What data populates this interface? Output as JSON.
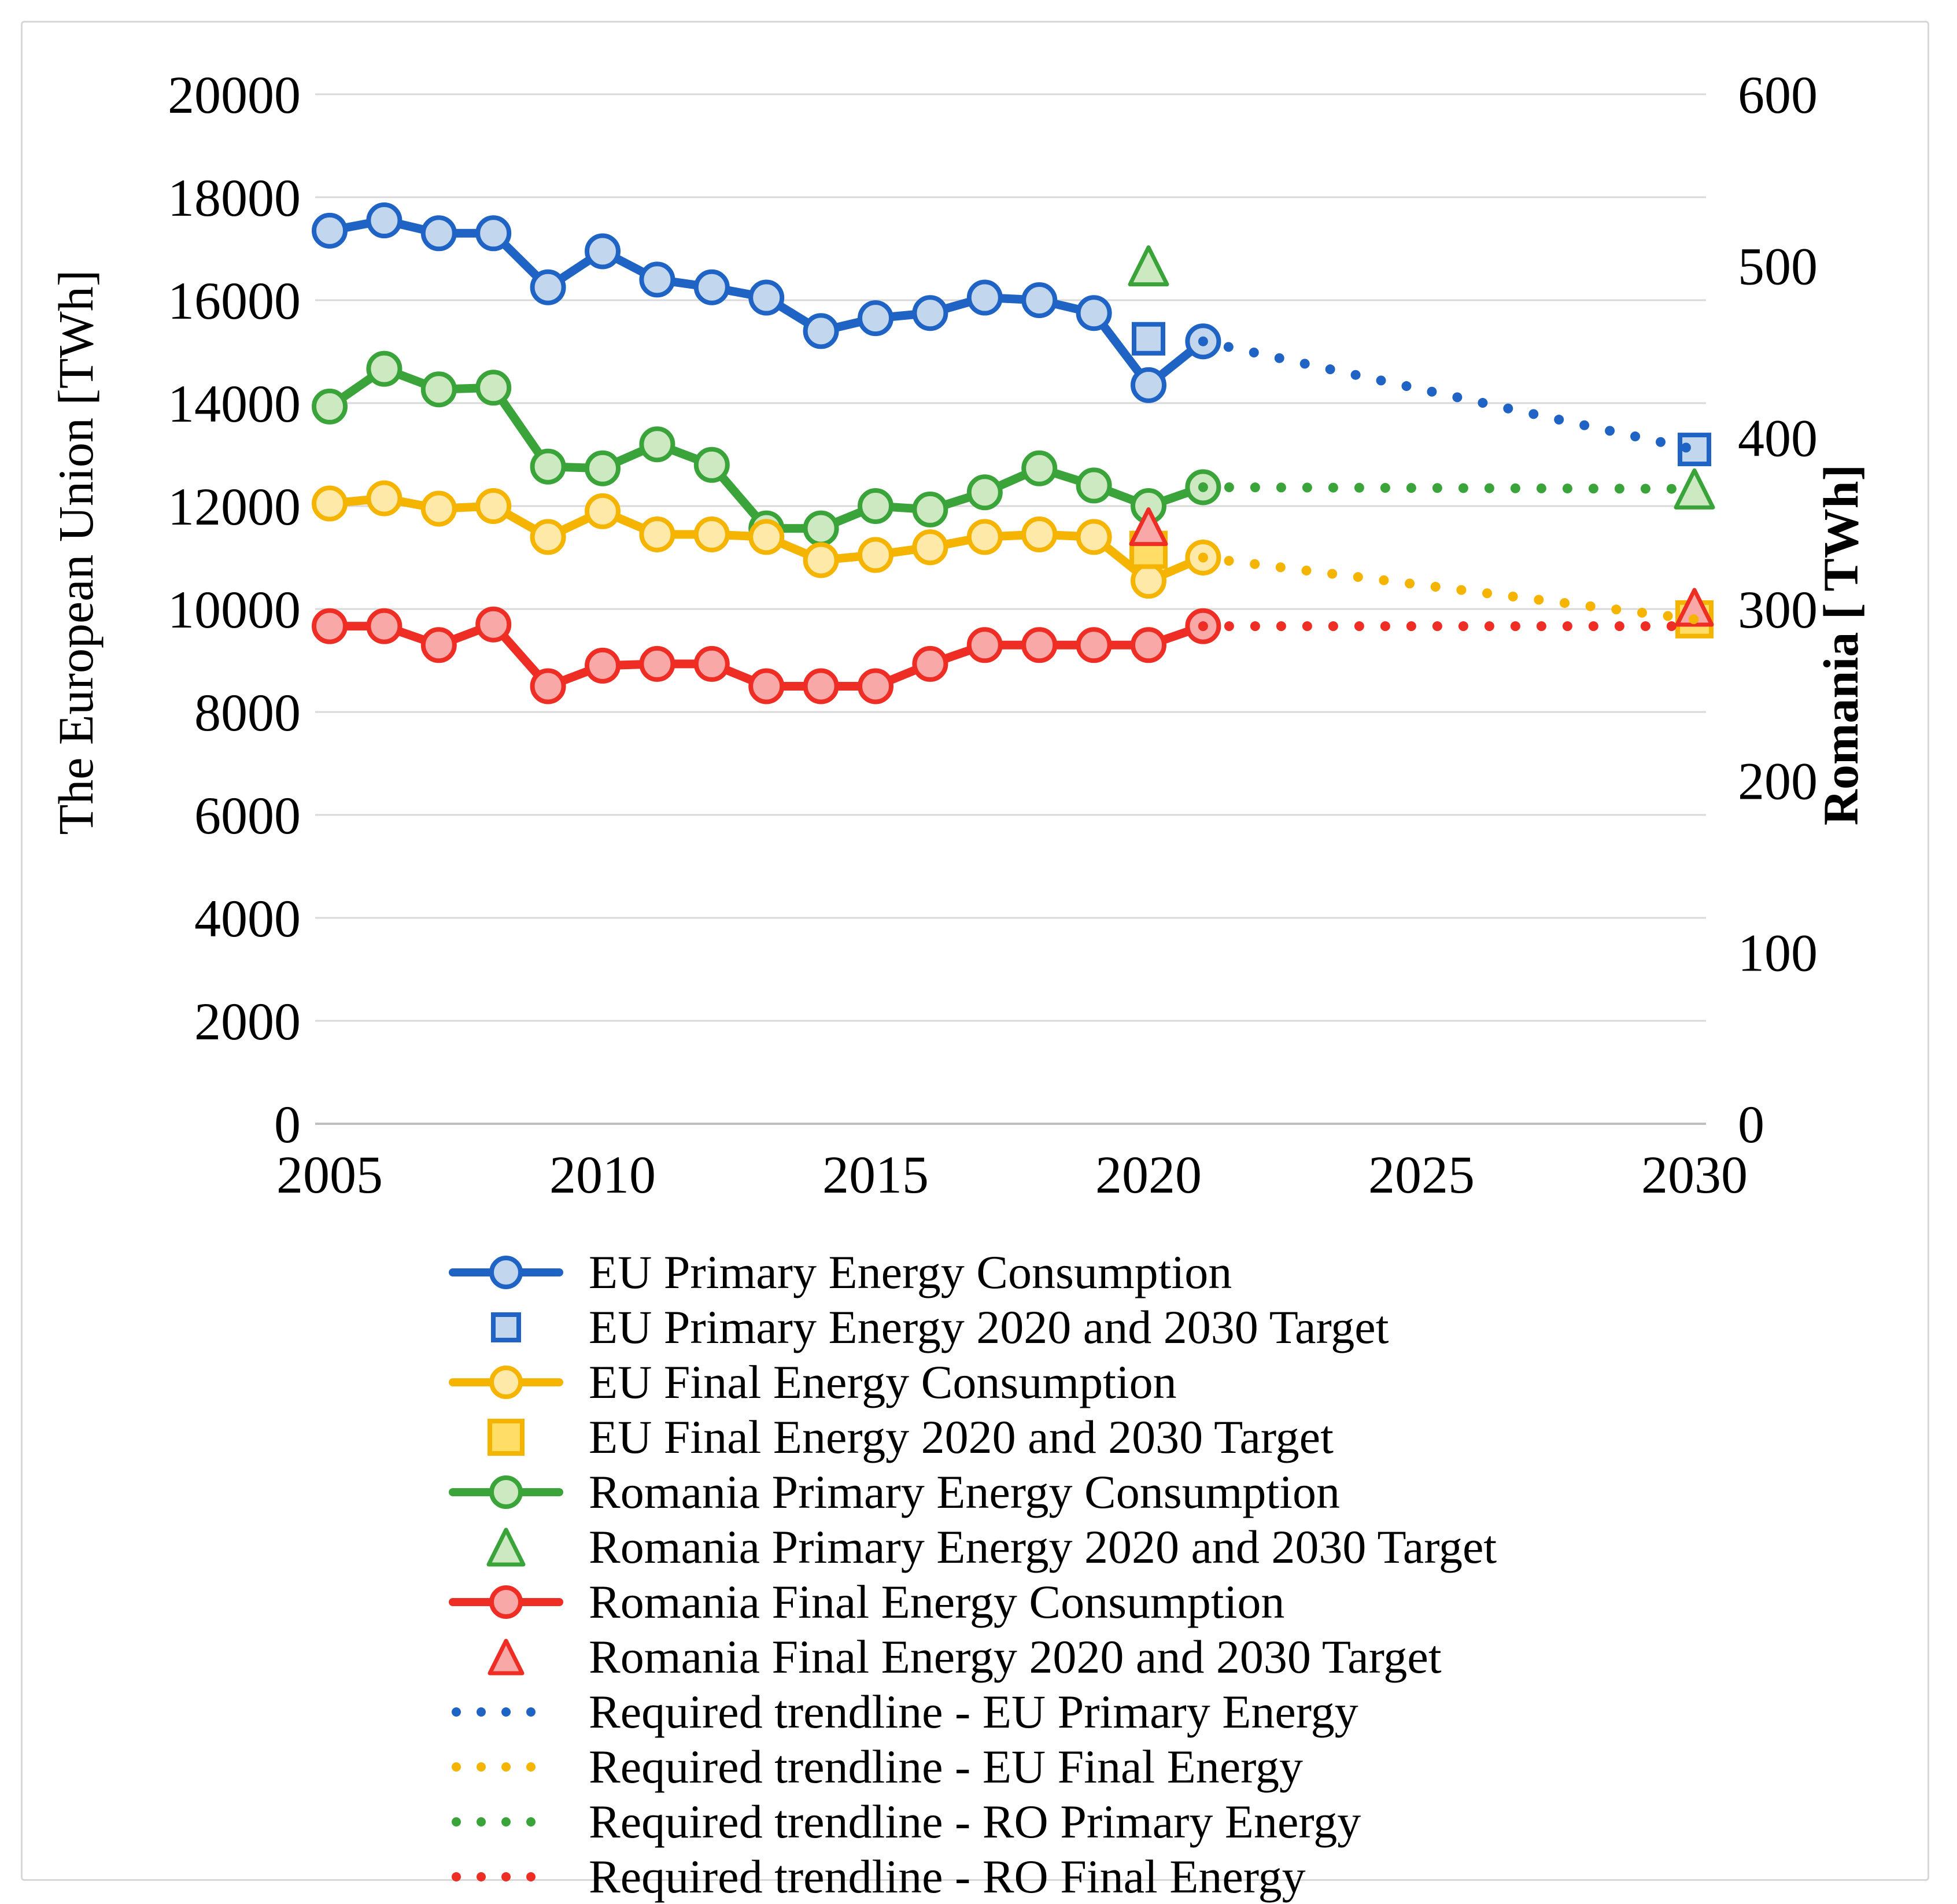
{
  "axes": {
    "left": {
      "title": "The European Union [TWh]",
      "ticks": [
        0,
        2000,
        4000,
        6000,
        8000,
        10000,
        12000,
        14000,
        16000,
        18000,
        20000
      ],
      "range": [
        0,
        20000
      ]
    },
    "right": {
      "title": "Romania [ TWh]",
      "ticks": [
        0,
        100,
        200,
        300,
        400,
        500,
        600
      ],
      "range": [
        0,
        600
      ]
    },
    "x": {
      "ticks": [
        2005,
        2010,
        2015,
        2020,
        2025,
        2030
      ],
      "range": [
        2005,
        2030
      ]
    }
  },
  "chart_data": {
    "type": "line",
    "x": [
      2005,
      2006,
      2007,
      2008,
      2009,
      2010,
      2011,
      2012,
      2013,
      2014,
      2015,
      2016,
      2017,
      2018,
      2019,
      2020,
      2021
    ],
    "grid": true,
    "legend_position": "bottom",
    "series": [
      {
        "name": "EU Primary Energy Consumption",
        "axis": "left",
        "color": "#1F63C4",
        "fill": "#C2D6EE",
        "values": [
          17350,
          17550,
          17300,
          17300,
          16250,
          16950,
          16400,
          16250,
          16050,
          15400,
          15650,
          15750,
          16050,
          16000,
          15750,
          14350,
          15200
        ]
      },
      {
        "name": "Romania Primary Energy Consumption",
        "axis": "right",
        "color": "#3AA43A",
        "fill": "#CDE9C2",
        "values": [
          418,
          440,
          428,
          429,
          383,
          382,
          396,
          384,
          347,
          347,
          360,
          358,
          368,
          382,
          372,
          360,
          371
        ]
      },
      {
        "name": "EU Final Energy Consumption",
        "axis": "left",
        "color": "#F5B400",
        "fill": "#FFE9A8",
        "values": [
          12050,
          12150,
          11950,
          12000,
          11400,
          11900,
          11450,
          11450,
          11400,
          10950,
          11050,
          11200,
          11400,
          11450,
          11400,
          10550,
          11000
        ]
      },
      {
        "name": "Romania Final Energy Consumption",
        "axis": "right",
        "color": "#EE2D24",
        "fill": "#F9A8A8",
        "values": [
          290,
          290,
          279,
          291,
          255,
          267,
          268,
          268,
          255,
          255,
          255,
          268,
          279,
          279,
          279,
          279,
          290
        ]
      }
    ],
    "targets": [
      {
        "name": "EU Final Energy 2020 and 2030 Target",
        "axis": "left",
        "shape": "square",
        "size": 58,
        "color": "#F5B400",
        "fill": "#FFDD66",
        "points": [
          {
            "year": 2020,
            "value": 11150
          },
          {
            "year": 2030,
            "value": 9800
          }
        ]
      },
      {
        "name": "EU Primary Energy 2020 and 2030 Target",
        "axis": "left",
        "shape": "square",
        "size": 50,
        "color": "#1F63C4",
        "fill": "#C2D6EE",
        "points": [
          {
            "year": 2020,
            "value": 15250
          },
          {
            "year": 2030,
            "value": 13100
          }
        ]
      },
      {
        "name": "Romania Primary Energy 2020 and 2030 Target",
        "axis": "right",
        "shape": "triangle",
        "size": 64,
        "color": "#3AA43A",
        "fill": "#CDE9C2",
        "points": [
          {
            "year": 2020,
            "value": 500
          },
          {
            "year": 2030,
            "value": 370
          }
        ]
      },
      {
        "name": "Romania Final Energy 2020 and 2030 Target",
        "axis": "right",
        "shape": "triangle",
        "size": 60,
        "color": "#EE2D24",
        "fill": "#F9A8A8",
        "points": [
          {
            "year": 2020,
            "value": 348
          },
          {
            "year": 2030,
            "value": 301
          }
        ]
      }
    ],
    "trendlines": [
      {
        "name": "Required trendline - EU Primary Energy",
        "axis": "left",
        "color": "#1F63C4",
        "points": [
          {
            "year": 2021,
            "value": 15200
          },
          {
            "year": 2030,
            "value": 13100
          }
        ]
      },
      {
        "name": "Required trendline - EU Final Energy",
        "axis": "left",
        "color": "#F5B400",
        "points": [
          {
            "year": 2021,
            "value": 11000
          },
          {
            "year": 2030,
            "value": 9800
          }
        ]
      },
      {
        "name": "Required trendline - RO Primary Energy",
        "axis": "right",
        "color": "#3AA43A",
        "points": [
          {
            "year": 2021,
            "value": 371
          },
          {
            "year": 2030,
            "value": 370
          }
        ]
      },
      {
        "name": "Required trendline - RO Final Energy",
        "axis": "right",
        "color": "#EE2D24",
        "points": [
          {
            "year": 2021,
            "value": 290
          },
          {
            "year": 2030,
            "value": 290
          }
        ]
      }
    ]
  },
  "colors": {
    "gridline": "#D9D9D9",
    "axis_line": "#BFBFBF",
    "text": "#000000"
  },
  "legend": {
    "items": [
      {
        "marker": "line-circle",
        "color": "#1F63C4",
        "fill": "#C2D6EE",
        "label": "EU Primary Energy Consumption"
      },
      {
        "marker": "square",
        "color": "#1F63C4",
        "fill": "#C2D6EE",
        "size": 44,
        "label": "EU Primary Energy 2020 and 2030 Target"
      },
      {
        "marker": "line-circle",
        "color": "#F5B400",
        "fill": "#FFE9A8",
        "label": "EU Final Energy Consumption"
      },
      {
        "marker": "square",
        "color": "#F5B400",
        "fill": "#FFDD66",
        "size": 56,
        "label": "EU Final Energy 2020 and 2030 Target"
      },
      {
        "marker": "line-circle",
        "color": "#3AA43A",
        "fill": "#CDE9C2",
        "label": "Romania Primary Energy Consumption"
      },
      {
        "marker": "triangle",
        "color": "#3AA43A",
        "fill": "#CDE9C2",
        "size": 60,
        "label": "Romania Primary Energy 2020 and 2030 Target"
      },
      {
        "marker": "line-circle",
        "color": "#EE2D24",
        "fill": "#F9A8A8",
        "label": "Romania Final Energy Consumption"
      },
      {
        "marker": "triangle",
        "color": "#EE2D24",
        "fill": "#F9A8A8",
        "size": 56,
        "label": "Romania Final Energy 2020 and 2030 Target"
      },
      {
        "marker": "dotted",
        "color": "#1F63C4",
        "label": "Required trendline - EU Primary Energy"
      },
      {
        "marker": "dotted",
        "color": "#F5B400",
        "label": "Required trendline - EU Final Energy"
      },
      {
        "marker": "dotted",
        "color": "#3AA43A",
        "label": "Required trendline - RO Primary Energy"
      },
      {
        "marker": "dotted",
        "color": "#EE2D24",
        "label": "Required trendline - RO Final Energy"
      }
    ]
  }
}
